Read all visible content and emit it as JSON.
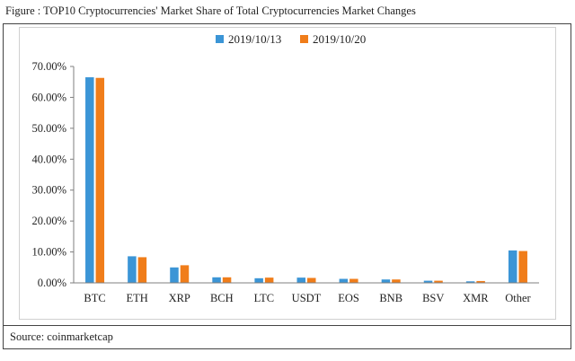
{
  "figure": {
    "title": "Figure : TOP10 Cryptocurrencies' Market Share of Total Cryptocurrencies Market Changes",
    "source": "Source: coinmarketcap"
  },
  "chart_data": {
    "type": "bar",
    "categories": [
      "BTC",
      "ETH",
      "XRP",
      "BCH",
      "LTC",
      "USDT",
      "EOS",
      "BNB",
      "BSV",
      "XMR",
      "Other"
    ],
    "series": [
      {
        "name": "2019/10/13",
        "color": "#3b95d6",
        "values": [
          66.5,
          8.6,
          5.0,
          1.8,
          1.5,
          1.7,
          1.3,
          1.1,
          0.7,
          0.5,
          10.5
        ]
      },
      {
        "name": "2019/10/20",
        "color": "#f07d1a",
        "values": [
          66.3,
          8.3,
          5.7,
          1.8,
          1.7,
          1.6,
          1.3,
          1.1,
          0.7,
          0.6,
          10.3
        ]
      }
    ],
    "yticks": [
      "0.00%",
      "10.00%",
      "20.00%",
      "30.00%",
      "40.00%",
      "50.00%",
      "60.00%",
      "70.00%"
    ],
    "ylim": [
      0,
      70
    ],
    "legend": "top-center",
    "grid": false
  }
}
